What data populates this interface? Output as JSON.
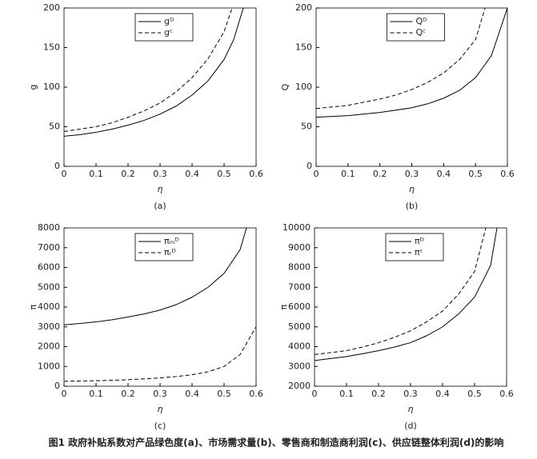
{
  "chart_data": [
    {
      "type": "line",
      "panel_label": "(a)",
      "xlabel": "η",
      "ylabel": "g",
      "legend": "upper center",
      "xlim": [
        0,
        0.6
      ],
      "xticks": [
        0,
        0.1,
        0.2,
        0.3,
        0.4,
        0.5,
        0.6
      ],
      "ylim": [
        0,
        200
      ],
      "yticks": [
        0,
        50,
        100,
        150,
        200
      ],
      "series": [
        {
          "name": "gᴰ",
          "color": "#000000",
          "dash": "solid",
          "x": [
            0,
            0.05,
            0.1,
            0.15,
            0.2,
            0.25,
            0.3,
            0.35,
            0.4,
            0.45,
            0.5,
            0.53,
            0.56
          ],
          "values": [
            38,
            40,
            43,
            47,
            52,
            58,
            66,
            76,
            90,
            108,
            135,
            160,
            200
          ]
        },
        {
          "name": "gᶜ",
          "color": "#000000",
          "dash": "dashed",
          "x": [
            0,
            0.05,
            0.1,
            0.15,
            0.2,
            0.25,
            0.3,
            0.35,
            0.4,
            0.45,
            0.5,
            0.525
          ],
          "values": [
            44,
            47,
            50,
            55,
            62,
            70,
            80,
            94,
            112,
            136,
            170,
            200
          ]
        }
      ]
    },
    {
      "type": "line",
      "panel_label": "(b)",
      "xlabel": "η",
      "ylabel": "Q",
      "legend": "upper center",
      "xlim": [
        0,
        0.6
      ],
      "xticks": [
        0,
        0.1,
        0.2,
        0.3,
        0.4,
        0.5,
        0.6
      ],
      "ylim": [
        0,
        200
      ],
      "yticks": [
        0,
        50,
        100,
        150,
        200
      ],
      "series": [
        {
          "name": "Qᴰ",
          "color": "#000000",
          "dash": "solid",
          "x": [
            0,
            0.05,
            0.1,
            0.15,
            0.2,
            0.25,
            0.3,
            0.35,
            0.4,
            0.45,
            0.5,
            0.55,
            0.6
          ],
          "values": [
            62,
            63,
            64,
            66,
            68,
            71,
            74,
            79,
            86,
            96,
            112,
            140,
            200
          ]
        },
        {
          "name": "Qᶜ",
          "color": "#000000",
          "dash": "dashed",
          "x": [
            0,
            0.05,
            0.1,
            0.15,
            0.2,
            0.25,
            0.3,
            0.35,
            0.4,
            0.45,
            0.5,
            0.53
          ],
          "values": [
            73,
            75,
            77,
            81,
            85,
            90,
            97,
            106,
            118,
            135,
            160,
            200
          ]
        }
      ]
    },
    {
      "type": "line",
      "panel_label": "(c)",
      "xlabel": "η",
      "ylabel": "π",
      "legend": "upper center",
      "xlim": [
        0,
        0.6
      ],
      "xticks": [
        0,
        0.1,
        0.2,
        0.3,
        0.4,
        0.5,
        0.6
      ],
      "ylim": [
        0,
        8000
      ],
      "yticks": [
        0,
        1000,
        2000,
        3000,
        4000,
        5000,
        6000,
        7000,
        8000
      ],
      "series": [
        {
          "name": "πₘᴰ",
          "color": "#000000",
          "dash": "solid",
          "x": [
            0,
            0.05,
            0.1,
            0.15,
            0.2,
            0.25,
            0.3,
            0.35,
            0.4,
            0.45,
            0.5,
            0.55,
            0.57
          ],
          "values": [
            3100,
            3170,
            3250,
            3360,
            3500,
            3650,
            3850,
            4120,
            4500,
            5000,
            5700,
            6900,
            8000
          ]
        },
        {
          "name": "πᵣᴰ",
          "color": "#000000",
          "dash": "dashed",
          "x": [
            0,
            0.05,
            0.1,
            0.15,
            0.2,
            0.25,
            0.3,
            0.35,
            0.4,
            0.45,
            0.5,
            0.55,
            0.6
          ],
          "values": [
            250,
            265,
            280,
            300,
            330,
            370,
            420,
            490,
            580,
            730,
            1000,
            1600,
            3000
          ]
        }
      ]
    },
    {
      "type": "line",
      "panel_label": "(d)",
      "xlabel": "η",
      "ylabel": "π",
      "legend": "upper center",
      "xlim": [
        0,
        0.6
      ],
      "xticks": [
        0,
        0.1,
        0.2,
        0.3,
        0.4,
        0.5,
        0.6
      ],
      "ylim": [
        2000,
        10000
      ],
      "yticks": [
        2000,
        3000,
        4000,
        5000,
        6000,
        7000,
        8000,
        9000,
        10000
      ],
      "series": [
        {
          "name": "πᴰ",
          "color": "#000000",
          "dash": "solid",
          "x": [
            0,
            0.05,
            0.1,
            0.15,
            0.2,
            0.25,
            0.3,
            0.35,
            0.4,
            0.45,
            0.5,
            0.55,
            0.57
          ],
          "values": [
            3300,
            3400,
            3500,
            3640,
            3800,
            3980,
            4200,
            4550,
            5000,
            5650,
            6500,
            8100,
            10000
          ]
        },
        {
          "name": "πᶜ",
          "color": "#000000",
          "dash": "dashed",
          "x": [
            0,
            0.05,
            0.1,
            0.15,
            0.2,
            0.25,
            0.3,
            0.35,
            0.4,
            0.45,
            0.5,
            0.535
          ],
          "values": [
            3600,
            3700,
            3800,
            3980,
            4200,
            4470,
            4800,
            5250,
            5800,
            6650,
            7800,
            10000
          ]
        }
      ]
    }
  ],
  "caption": "图1 政府补贴系数对产品绿色度(a)、市场需求量(b)、零售商和制造商利润(c)、供应链整体利润(d)的影响"
}
